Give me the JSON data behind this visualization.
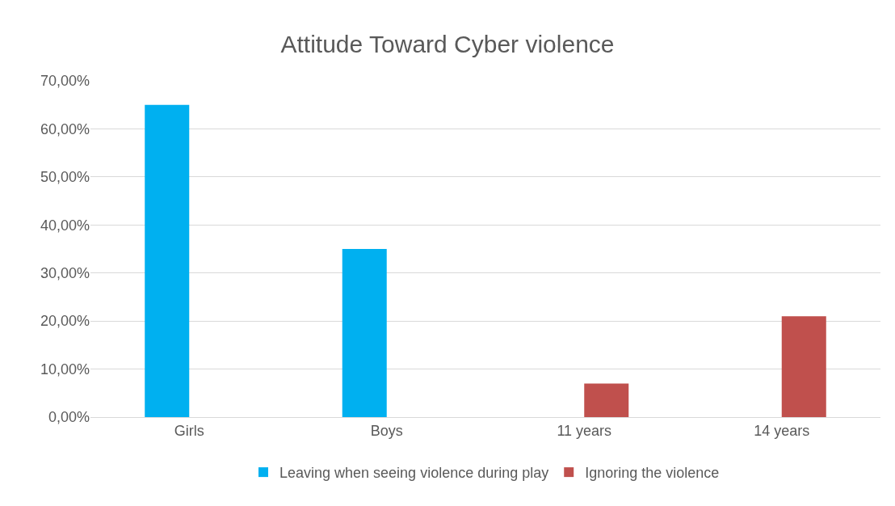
{
  "chart_data": {
    "type": "bar",
    "title": "Attitude Toward Cyber violence",
    "categories": [
      "Girls",
      "Boys",
      "11 years",
      "14 years"
    ],
    "series": [
      {
        "name": "Leaving when seeing violence during play",
        "color": "#00b0f0",
        "values": [
          65,
          35,
          null,
          null
        ]
      },
      {
        "name": "Ignoring the violence",
        "color": "#c0504d",
        "values": [
          null,
          null,
          7,
          21
        ]
      }
    ],
    "ylim": [
      0,
      70
    ],
    "yticks": [
      {
        "value": 0,
        "label": "0,00%"
      },
      {
        "value": 10,
        "label": "10,00%"
      },
      {
        "value": 20,
        "label": "20,00%"
      },
      {
        "value": 30,
        "label": "30,00%"
      },
      {
        "value": 40,
        "label": "40,00%"
      },
      {
        "value": 50,
        "label": "50,00%"
      },
      {
        "value": 60,
        "label": "60,00%"
      },
      {
        "value": 70,
        "label": "70,00%"
      }
    ],
    "grid": "y",
    "legend": "bottom"
  }
}
